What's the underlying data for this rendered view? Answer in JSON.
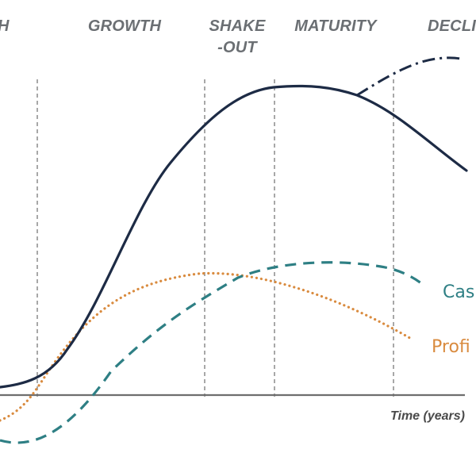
{
  "colors": {
    "navy": "#1d2b45",
    "teal": "#2e7f84",
    "orange": "#d98b3f",
    "stage_text": "#6b6f73",
    "divider": "#6f6f6f",
    "axis": "#6e6e6e",
    "axis_text": "#4a4a4a"
  },
  "stages": {
    "start": "H",
    "growth": "GROWTH",
    "shakeout_line1": "SHAKE",
    "shakeout_line2": "-OUT",
    "maturity": "MATURITY",
    "decline": "DECLI"
  },
  "axis": {
    "x_label": "Time (years)"
  },
  "series": {
    "cash": "Cas",
    "profit": "Profi"
  }
}
